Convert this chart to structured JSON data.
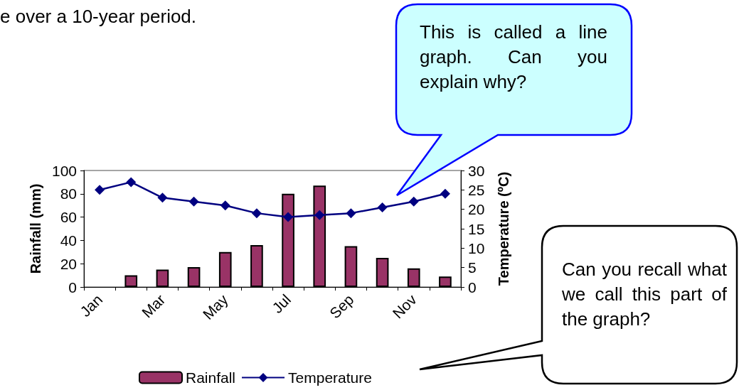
{
  "chart_data": {
    "type": "bar",
    "categories": [
      "Jan",
      null,
      "Mar",
      null,
      "May",
      null,
      "Jul",
      null,
      "Sep",
      null,
      "Nov",
      null
    ],
    "series": [
      {
        "name": "Rainfall",
        "color": "#993366",
        "values": [
          null,
          10,
          15,
          17,
          30,
          36,
          80,
          87,
          35,
          25,
          16,
          9
        ]
      },
      {
        "name": "Temperature",
        "type": "line",
        "axis": "y2",
        "marker": "diamond",
        "color": "#000080",
        "values": [
          25,
          27,
          23,
          22,
          21,
          19,
          18,
          18.5,
          19,
          20.5,
          22,
          24
        ]
      }
    ],
    "ylabel": "Rainfall (mm)",
    "y2label": "Temperature (ºC)",
    "ylim": [
      0,
      100
    ],
    "yticks": [
      0,
      20,
      40,
      60,
      80,
      100
    ],
    "y2lim": [
      0,
      30
    ],
    "y2ticks": [
      0,
      5,
      10,
      15,
      20,
      25,
      30
    ],
    "legend": "bottom",
    "annotations": [
      "e over a 10-year period.",
      "This is called a line graph. Can you explain why?",
      "Can you recall what we call this part of the graph?"
    ]
  }
}
